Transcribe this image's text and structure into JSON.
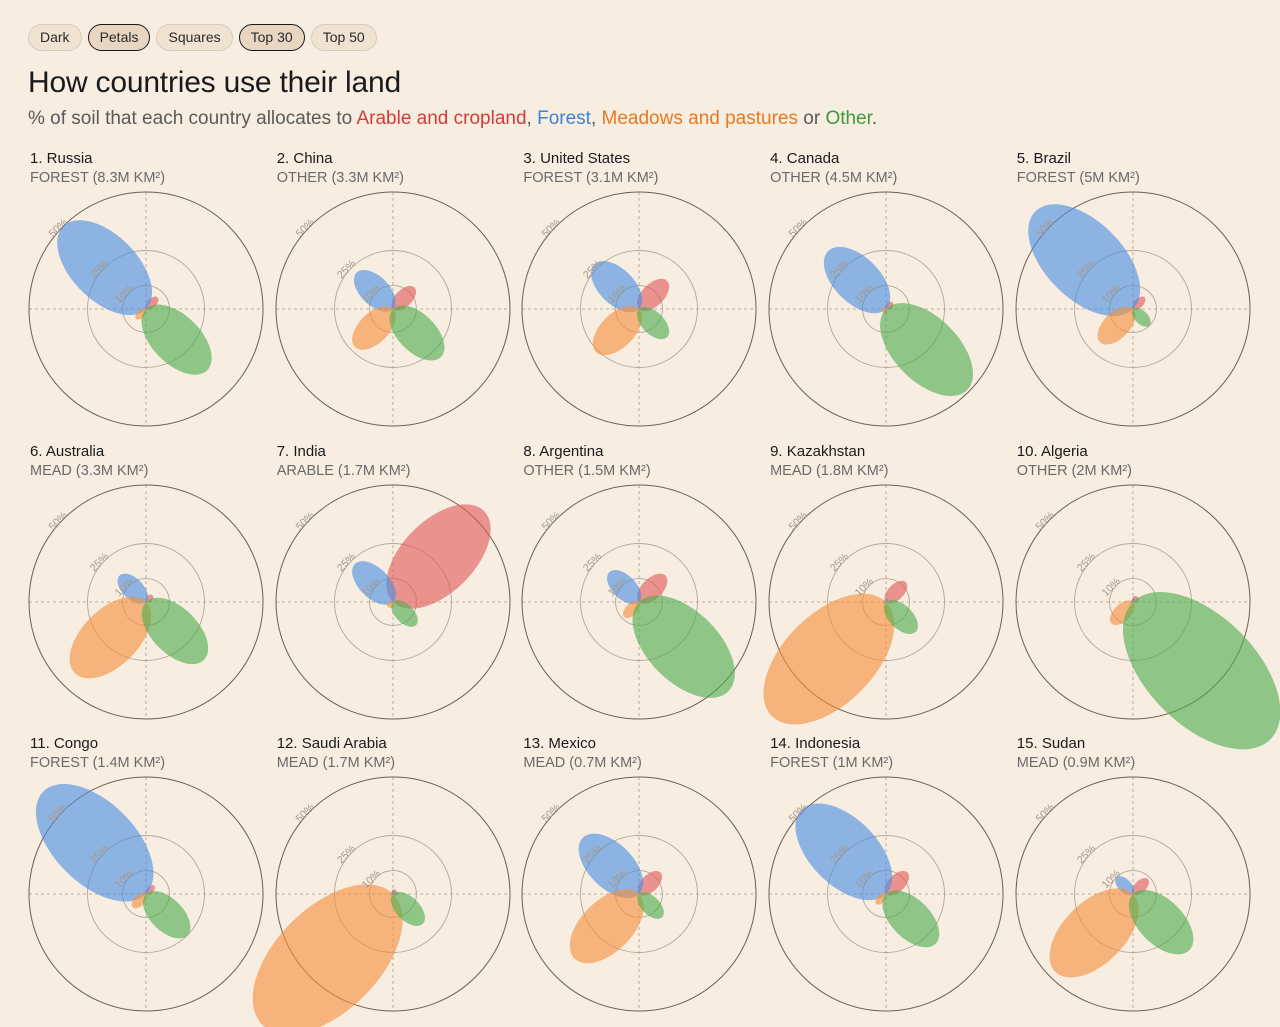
{
  "toolbar": {
    "buttons": [
      {
        "label": "Dark",
        "active": false
      },
      {
        "label": "Petals",
        "active": true
      },
      {
        "label": "Squares",
        "active": false
      },
      {
        "label": "Top 30",
        "active": true
      },
      {
        "label": "Top 50",
        "active": false
      }
    ]
  },
  "header": {
    "title": "How countries use their land",
    "subtitle_prefix": "% of soil that each country allocates to ",
    "arable_label": "Arable and cropland",
    "sep1": ", ",
    "forest_label": "Forest",
    "sep2": ", ",
    "mead_label": "Meadows and pastures",
    "sep3": " or ",
    "other_label": "Other",
    "subtitle_end": "."
  },
  "colors": {
    "arable": "#e05a5a",
    "forest": "#4a90e2",
    "mead": "#f5923e",
    "other": "#4fae4f",
    "background": "#f7ede1"
  },
  "chart_data": {
    "type": "petal-radial",
    "ring_labels": [
      "10%",
      "25%",
      "50%"
    ],
    "countries": [
      {
        "rank": "1.",
        "name": "Russia",
        "main": "FOREST (8.3M KM²)",
        "arable": 7,
        "forest": 50,
        "mead": 6,
        "other": 37
      },
      {
        "rank": "2.",
        "name": "China",
        "main": "OTHER (3.3M KM²)",
        "arable": 13,
        "forest": 22,
        "mead": 23,
        "other": 29
      },
      {
        "rank": "3.",
        "name": "United States",
        "main": "FOREST (3.1M KM²)",
        "arable": 17,
        "forest": 27,
        "mead": 26,
        "other": 17
      },
      {
        "rank": "4.",
        "name": "Canada",
        "main": "OTHER (4.5M KM²)",
        "arable": 4,
        "forest": 35,
        "mead": 2,
        "other": 49
      },
      {
        "rank": "5.",
        "name": "Brazil",
        "main": "FOREST (5M KM²)",
        "arable": 7,
        "forest": 59,
        "mead": 20,
        "other": 10
      },
      {
        "rank": "6.",
        "name": "Australia",
        "main": "MEAD (3.3M KM²)",
        "arable": 4,
        "forest": 16,
        "mead": 43,
        "other": 35
      },
      {
        "rank": "7.",
        "name": "India",
        "main": "ARABLE (1.7M KM²)",
        "arable": 55,
        "forest": 23,
        "mead": 3,
        "other": 14
      },
      {
        "rank": "8.",
        "name": "Argentina",
        "main": "OTHER (1.5M KM²)",
        "arable": 16,
        "forest": 18,
        "mead": 9,
        "other": 54
      },
      {
        "rank": "9.",
        "name": "Kazakhstan",
        "main": "MEAD (1.8M KM²)",
        "arable": 12,
        "forest": 1,
        "mead": 69,
        "other": 18
      },
      {
        "rank": "10.",
        "name": "Algeria",
        "main": "OTHER (2M KM²)",
        "arable": 3,
        "forest": 1,
        "mead": 13,
        "other": 83
      },
      {
        "rank": "11.",
        "name": "Congo",
        "main": "FOREST (1.4M KM²)",
        "arable": 5,
        "forest": 62,
        "mead": 8,
        "other": 25
      },
      {
        "rank": "12.",
        "name": "Saudi Arabia",
        "main": "MEAD (1.7M KM²)",
        "arable": 2,
        "forest": 1,
        "mead": 79,
        "other": 18
      },
      {
        "rank": "13.",
        "name": "Mexico",
        "main": "MEAD (0.7M KM²)",
        "arable": 13,
        "forest": 34,
        "mead": 39,
        "other": 14
      },
      {
        "rank": "14.",
        "name": "Indonesia",
        "main": "FOREST (1M KM²)",
        "arable": 13,
        "forest": 51,
        "mead": 6,
        "other": 30
      },
      {
        "rank": "15.",
        "name": "Sudan",
        "main": "MEAD (0.9M KM²)",
        "arable": 9,
        "forest": 10,
        "mead": 47,
        "other": 34
      }
    ]
  }
}
